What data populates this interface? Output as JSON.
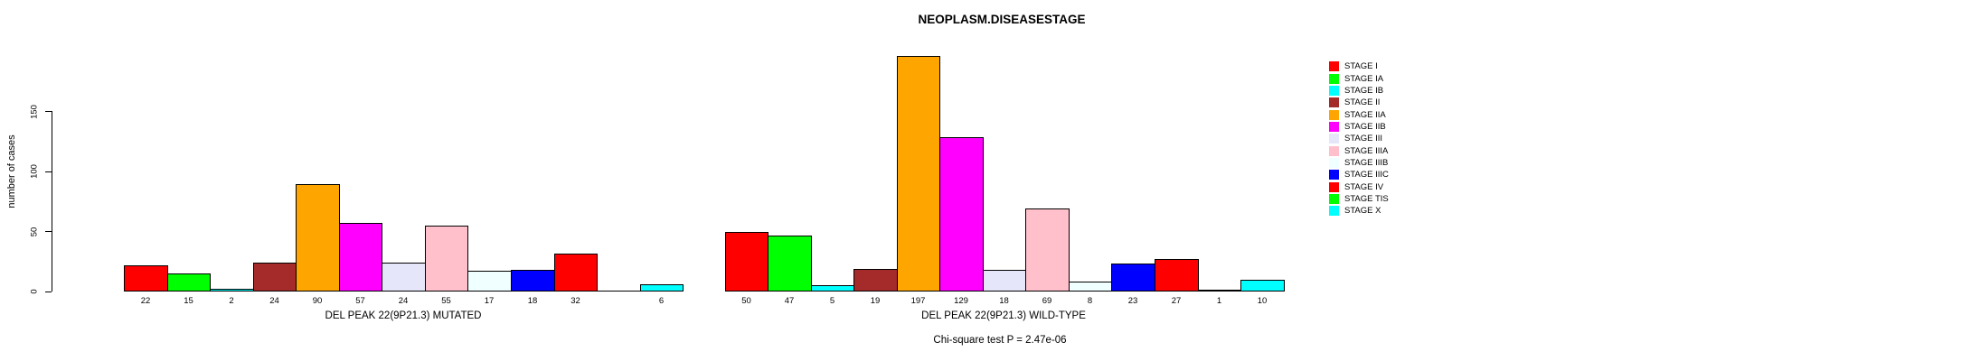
{
  "chart_data": {
    "type": "bar",
    "title": "NEOPLASM.DISEASESTAGE",
    "ylabel": "number of cases",
    "xlabel": "",
    "ylim": [
      0,
      200
    ],
    "yticks": [
      0,
      50,
      100,
      150
    ],
    "grid": false,
    "legend_position": "right",
    "categories": [
      "STAGE I",
      "STAGE IA",
      "STAGE IB",
      "STAGE II",
      "STAGE IIA",
      "STAGE IIB",
      "STAGE III",
      "STAGE IIIA",
      "STAGE IIIB",
      "STAGE IIIC",
      "STAGE IV",
      "STAGE TIS",
      "STAGE X"
    ],
    "colors": [
      "#FF0000",
      "#00FF00",
      "#00FFFF",
      "#A52A2A",
      "#FFA500",
      "#FF00FF",
      "#E6E6FA",
      "#FFC0CB",
      "#F0FFFF",
      "#0000FF",
      "#FF0000",
      "#00FF00",
      "#00FFFF"
    ],
    "groups": [
      {
        "label": "DEL PEAK 22(9P21.3) MUTATED",
        "values": [
          22,
          15,
          2,
          24,
          90,
          57,
          24,
          55,
          17,
          18,
          32,
          0,
          6
        ],
        "value_labels": [
          "22",
          "15",
          "2",
          "24",
          "90",
          "57",
          "24",
          "55",
          "17",
          "18",
          "32",
          "",
          "6"
        ]
      },
      {
        "label": "DEL PEAK 22(9P21.3) WILD-TYPE",
        "values": [
          50,
          47,
          5,
          19,
          197,
          129,
          18,
          69,
          8,
          23,
          27,
          1,
          10
        ],
        "value_labels": [
          "50",
          "47",
          "5",
          "19",
          "197",
          "129",
          "18",
          "69",
          "8",
          "23",
          "27",
          "1",
          "10"
        ]
      }
    ],
    "annotation": "Chi-square test P = 2.47e-06",
    "legend": [
      {
        "label": "STAGE I",
        "color": "#FF0000"
      },
      {
        "label": "STAGE IA",
        "color": "#00FF00"
      },
      {
        "label": "STAGE IB",
        "color": "#00FFFF"
      },
      {
        "label": "STAGE II",
        "color": "#A52A2A"
      },
      {
        "label": "STAGE IIA",
        "color": "#FFA500"
      },
      {
        "label": "STAGE IIB",
        "color": "#FF00FF"
      },
      {
        "label": "STAGE III",
        "color": "#E6E6FA"
      },
      {
        "label": "STAGE IIIA",
        "color": "#FFC0CB"
      },
      {
        "label": "STAGE IIIB",
        "color": "#F0FFFF"
      },
      {
        "label": "STAGE IIIC",
        "color": "#0000FF"
      },
      {
        "label": "STAGE IV",
        "color": "#FF0000"
      },
      {
        "label": "STAGE TIS",
        "color": "#00FF00"
      },
      {
        "label": "STAGE X",
        "color": "#00FFFF"
      }
    ]
  }
}
